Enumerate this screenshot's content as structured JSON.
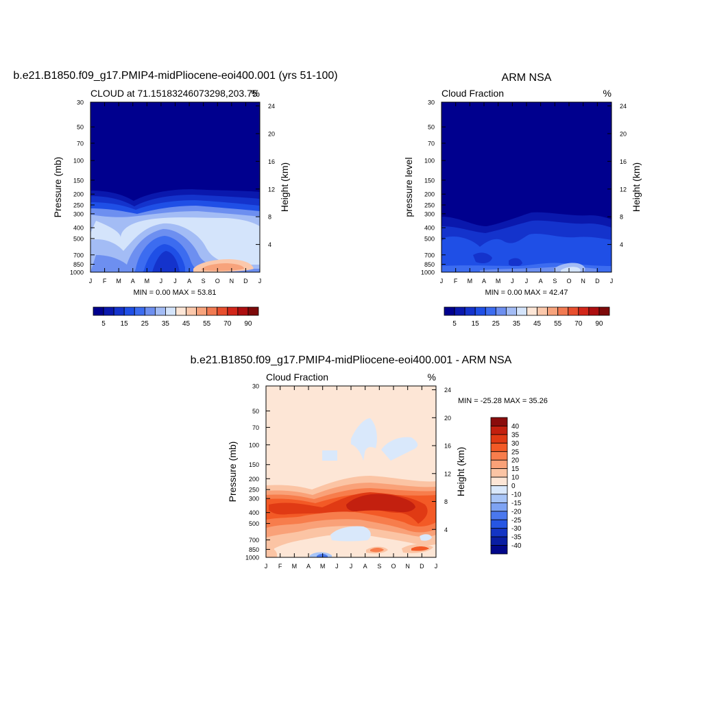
{
  "chart_data": [
    {
      "type": "heatmap",
      "suptitle": "b.e21.B1850.f09_g17.PMIP4-midPliocene-eoi400.001 (yrs 51-100)",
      "title_left": "CLOUD at 71.15183246073298,203.75",
      "title_right": "%",
      "ylabel": "Pressure (mb)",
      "ylabel_right": "Height (km)",
      "x_ticks": [
        "J",
        "F",
        "M",
        "A",
        "M",
        "J",
        "J",
        "A",
        "S",
        "O",
        "N",
        "D",
        "J"
      ],
      "y_ticks": [
        "30",
        "50",
        "70",
        "100",
        "150",
        "200",
        "250",
        "300",
        "400",
        "500",
        "700",
        "850",
        "1000"
      ],
      "y_ticks_right": [
        "24",
        "20",
        "16",
        "12",
        "8",
        "4"
      ],
      "stats": "MIN =   0.00 MAX =  53.81",
      "colorbar_labels": [
        "5",
        "15",
        "25",
        "35",
        "45",
        "55",
        "70",
        "90"
      ],
      "colorbar_colors": [
        "#00008e",
        "#0a18ad",
        "#1433cc",
        "#1f4fe6",
        "#3c6cf0",
        "#6d8ff0",
        "#a3bcf5",
        "#d4e4fb",
        "#fde6d6",
        "#fbc8ab",
        "#f7a37c",
        "#f17a52",
        "#e84f2e",
        "#d2261a",
        "#ad0f10",
        "#7d0a0a"
      ],
      "ylim": [
        30,
        1000
      ],
      "y_scale": "log"
    },
    {
      "type": "heatmap",
      "suptitle": "ARM NSA",
      "title_left": "Cloud Fraction",
      "title_right": "%",
      "ylabel": "pressure level",
      "ylabel_right": "Height (km)",
      "x_ticks": [
        "J",
        "F",
        "M",
        "A",
        "M",
        "J",
        "J",
        "A",
        "S",
        "O",
        "N",
        "D",
        "J"
      ],
      "y_ticks": [
        "30",
        "50",
        "70",
        "100",
        "150",
        "200",
        "250",
        "300",
        "400",
        "500",
        "700",
        "850",
        "1000"
      ],
      "y_ticks_right": [
        "24",
        "20",
        "16",
        "12",
        "8",
        "4"
      ],
      "stats": "MIN =   0.00 MAX =  42.47",
      "colorbar_labels": [
        "5",
        "15",
        "25",
        "35",
        "45",
        "55",
        "70",
        "90"
      ],
      "colorbar_colors": [
        "#00008e",
        "#0a18ad",
        "#1433cc",
        "#1f4fe6",
        "#3c6cf0",
        "#6d8ff0",
        "#a3bcf5",
        "#d4e4fb",
        "#fde6d6",
        "#fbc8ab",
        "#f7a37c",
        "#f17a52",
        "#e84f2e",
        "#d2261a",
        "#ad0f10",
        "#7d0a0a"
      ],
      "ylim": [
        30,
        1000
      ],
      "y_scale": "log"
    },
    {
      "type": "heatmap",
      "suptitle": "b.e21.B1850.f09_g17.PMIP4-midPliocene-eoi400.001 - ARM NSA",
      "title_left": "Cloud Fraction",
      "title_right": "%",
      "ylabel": "Pressure (mb)",
      "ylabel_right": "Height (km)",
      "x_ticks": [
        "J",
        "F",
        "M",
        "A",
        "M",
        "J",
        "J",
        "A",
        "S",
        "O",
        "N",
        "D",
        "J"
      ],
      "y_ticks": [
        "30",
        "50",
        "70",
        "100",
        "150",
        "200",
        "250",
        "300",
        "400",
        "500",
        "700",
        "850",
        "1000"
      ],
      "y_ticks_right": [
        "24",
        "20",
        "16",
        "12",
        "8",
        "4"
      ],
      "stats": "MIN = -25.28 MAX =  35.26",
      "colorbar_labels": [
        "40",
        "35",
        "30",
        "25",
        "20",
        "15",
        "10",
        "0",
        "-10",
        "-15",
        "-20",
        "-25",
        "-30",
        "-35",
        "-40"
      ],
      "colorbar_colors": [
        "#8a0c0c",
        "#c3200f",
        "#e03a14",
        "#f35a26",
        "#f77d4c",
        "#f9a178",
        "#fbc4a4",
        "#fde6d6",
        "#d9e8fb",
        "#a8c5f7",
        "#7ea3f3",
        "#4a78ee",
        "#2656e3",
        "#1435c4",
        "#0a1ea3",
        "#02088a"
      ],
      "ylim": [
        30,
        1000
      ],
      "y_scale": "log"
    }
  ]
}
